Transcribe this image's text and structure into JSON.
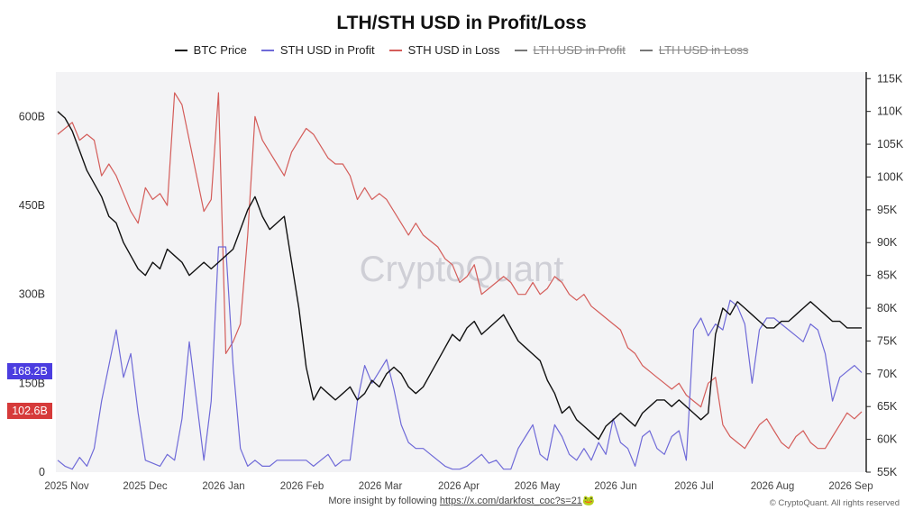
{
  "chart_data": {
    "type": "line",
    "title": "LTH/STH USD in Profit/Loss",
    "legend": [
      {
        "name": "BTC Price",
        "color": "#111111",
        "enabled": true
      },
      {
        "name": "STH USD in Profit",
        "color": "#6f6ad8",
        "enabled": true
      },
      {
        "name": "STH USD in Loss",
        "color": "#d45d5a",
        "enabled": true
      },
      {
        "name": "LTH USD in Profit",
        "color": "#555555",
        "enabled": false
      },
      {
        "name": "LTH USD in Loss",
        "color": "#555555",
        "enabled": false
      }
    ],
    "legend_position": "top-center",
    "x_labels": [
      "2025 Nov",
      "2025 Dec",
      "2026 Jan",
      "2026 Feb",
      "2026 Mar",
      "2026 Apr",
      "2026 May",
      "2026 Jun",
      "2026 Jul",
      "2026 Aug",
      "2026 Sep"
    ],
    "left_axis": {
      "ticks": [
        "0",
        "150B",
        "300B",
        "450B",
        "600B"
      ],
      "values": [
        0,
        150,
        300,
        450,
        600
      ],
      "range": [
        0,
        675
      ],
      "unit": "B"
    },
    "right_axis": {
      "ticks": [
        "55K",
        "60K",
        "65K",
        "70K",
        "75K",
        "80K",
        "85K",
        "90K",
        "95K",
        "100K",
        "105K",
        "110K",
        "115K"
      ],
      "values": [
        55,
        60,
        65,
        70,
        75,
        80,
        85,
        90,
        95,
        100,
        105,
        110,
        115
      ],
      "range": [
        55,
        116
      ]
    },
    "grid": false,
    "series": [
      {
        "name": "BTC Price",
        "axis": "right",
        "color": "#111111",
        "x": [
          0.0,
          0.01,
          0.02,
          0.03,
          0.04,
          0.05,
          0.06,
          0.07,
          0.08,
          0.09,
          0.1,
          0.11,
          0.12,
          0.13,
          0.14,
          0.15,
          0.16,
          0.17,
          0.18,
          0.19,
          0.2,
          0.21,
          0.22,
          0.23,
          0.24,
          0.25,
          0.26,
          0.27,
          0.28,
          0.29,
          0.3,
          0.31,
          0.32,
          0.33,
          0.34,
          0.35,
          0.36,
          0.37,
          0.38,
          0.39,
          0.4,
          0.41,
          0.42,
          0.43,
          0.44,
          0.45,
          0.46,
          0.47,
          0.48,
          0.49,
          0.5,
          0.51,
          0.52,
          0.53,
          0.54,
          0.55,
          0.56,
          0.57,
          0.58,
          0.59,
          0.6,
          0.61,
          0.62,
          0.63,
          0.64,
          0.65,
          0.66,
          0.67,
          0.68,
          0.69,
          0.7,
          0.71,
          0.72,
          0.73,
          0.74,
          0.75,
          0.76,
          0.77,
          0.78,
          0.79,
          0.8,
          0.81,
          0.82,
          0.83,
          0.84,
          0.85,
          0.86,
          0.87,
          0.88,
          0.89,
          0.9,
          0.91,
          0.92,
          0.93,
          0.94,
          0.95,
          0.96,
          0.97,
          0.98,
          0.99,
          1.0,
          1.01,
          1.02,
          1.03,
          1.04,
          1.05,
          1.06,
          1.07,
          1.08,
          1.09,
          1.1
        ],
        "values": [
          110,
          109,
          107,
          104,
          101,
          99,
          97,
          94,
          93,
          90,
          88,
          86,
          85,
          87,
          86,
          89,
          88,
          87,
          85,
          86,
          87,
          86,
          87,
          88,
          89,
          92,
          95,
          97,
          94,
          92,
          93,
          94,
          87,
          80,
          71,
          66,
          68,
          67,
          66,
          67,
          68,
          66,
          67,
          69,
          68,
          70,
          71,
          70,
          68,
          67,
          68,
          70,
          72,
          74,
          76,
          75,
          77,
          78,
          76,
          77,
          78,
          79,
          77,
          75,
          74,
          73,
          72,
          69,
          67,
          64,
          65,
          63,
          62,
          61,
          60,
          62,
          63,
          64,
          63,
          62,
          64,
          65,
          66,
          66,
          65,
          66,
          65,
          64,
          63,
          64,
          76,
          80,
          79,
          81,
          80,
          79,
          78,
          77,
          77,
          78,
          78,
          79,
          80,
          81,
          80,
          79,
          78,
          78,
          77,
          77,
          77
        ]
      },
      {
        "name": "STH USD in Profit",
        "axis": "left",
        "color": "#6f6ad8",
        "values": [
          20,
          10,
          5,
          25,
          10,
          40,
          120,
          180,
          240,
          160,
          200,
          100,
          20,
          15,
          10,
          30,
          20,
          90,
          220,
          120,
          20,
          120,
          380,
          380,
          180,
          40,
          10,
          20,
          10,
          10,
          20,
          20,
          20,
          20,
          20,
          10,
          20,
          30,
          10,
          20,
          20,
          120,
          180,
          150,
          170,
          190,
          140,
          80,
          50,
          40,
          40,
          30,
          20,
          10,
          5,
          5,
          10,
          20,
          30,
          15,
          20,
          5,
          5,
          40,
          60,
          80,
          30,
          20,
          80,
          60,
          30,
          20,
          40,
          20,
          50,
          30,
          90,
          50,
          40,
          10,
          60,
          70,
          40,
          30,
          60,
          70,
          20,
          240,
          260,
          230,
          250,
          240,
          290,
          280,
          250,
          150,
          240,
          260,
          260,
          250,
          240,
          230,
          220,
          250,
          240,
          200,
          120,
          160,
          170,
          180,
          168
        ]
      },
      {
        "name": "STH USD in Loss",
        "axis": "left",
        "color": "#d45d5a",
        "values": [
          570,
          580,
          590,
          560,
          570,
          560,
          500,
          520,
          500,
          470,
          440,
          420,
          480,
          460,
          470,
          450,
          640,
          620,
          560,
          500,
          440,
          460,
          640,
          200,
          220,
          250,
          400,
          600,
          560,
          540,
          520,
          500,
          540,
          560,
          580,
          570,
          550,
          530,
          520,
          520,
          500,
          460,
          480,
          460,
          470,
          460,
          440,
          420,
          400,
          420,
          400,
          390,
          380,
          360,
          350,
          320,
          330,
          350,
          300,
          310,
          320,
          330,
          320,
          300,
          300,
          320,
          300,
          310,
          330,
          320,
          300,
          290,
          300,
          280,
          270,
          260,
          250,
          240,
          210,
          200,
          180,
          170,
          160,
          150,
          140,
          150,
          130,
          120,
          110,
          150,
          160,
          80,
          60,
          50,
          40,
          60,
          80,
          90,
          70,
          50,
          40,
          60,
          70,
          50,
          40,
          40,
          60,
          80,
          100,
          90,
          102
        ]
      }
    ]
  },
  "badges": {
    "sth_profit_last": {
      "label": "168.2B",
      "color": "#4b3de0"
    },
    "sth_loss_last": {
      "label": "102.6B",
      "color": "#d63a3a"
    }
  },
  "watermark": "CryptoQuant",
  "footer": {
    "text": "More insight by following",
    "link": "https://x.com/darkfost_coc?s=21",
    "emoji": "🐸"
  },
  "copyright": "© CryptoQuant. All rights reserved"
}
